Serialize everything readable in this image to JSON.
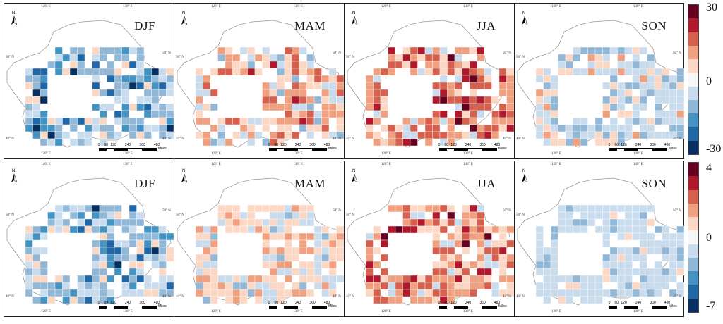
{
  "panels": [
    {
      "row": "top",
      "season": "DJF",
      "tone": "blue-dominant"
    },
    {
      "row": "top",
      "season": "MAM",
      "tone": "red-dominant"
    },
    {
      "row": "top",
      "season": "JJA",
      "tone": "red-strong"
    },
    {
      "row": "top",
      "season": "SON",
      "tone": "light-mixed"
    },
    {
      "row": "bottom",
      "season": "DJF",
      "tone": "blue-dominant"
    },
    {
      "row": "bottom",
      "season": "MAM",
      "tone": "light-red"
    },
    {
      "row": "bottom",
      "season": "JJA",
      "tone": "red-strong"
    },
    {
      "row": "bottom",
      "season": "SON",
      "tone": "light-blue"
    }
  ],
  "map_labels": {
    "north": "N",
    "lon_120": "120° E",
    "lon_130": "130° E",
    "lat_50": "50° N",
    "lat_40": "40° N",
    "scale_ticks": [
      "0",
      "60",
      "120",
      "240",
      "360",
      "480"
    ],
    "scale_unit": "Miles"
  },
  "legends": [
    {
      "row": "top",
      "max": "30",
      "mid": "0",
      "min": "-30"
    },
    {
      "row": "bottom",
      "max": "4",
      "mid": "0",
      "min": "-7"
    }
  ],
  "colors": {
    "palette": [
      "#053061",
      "#1f67a6",
      "#4393c3",
      "#92b8d8",
      "#c8dced",
      "#f7f7f7",
      "#fbd7c4",
      "#f0a07f",
      "#d6604d",
      "#b2182b",
      "#67001f"
    ],
    "outline": "#9a9a9a",
    "border": "#222222"
  }
}
